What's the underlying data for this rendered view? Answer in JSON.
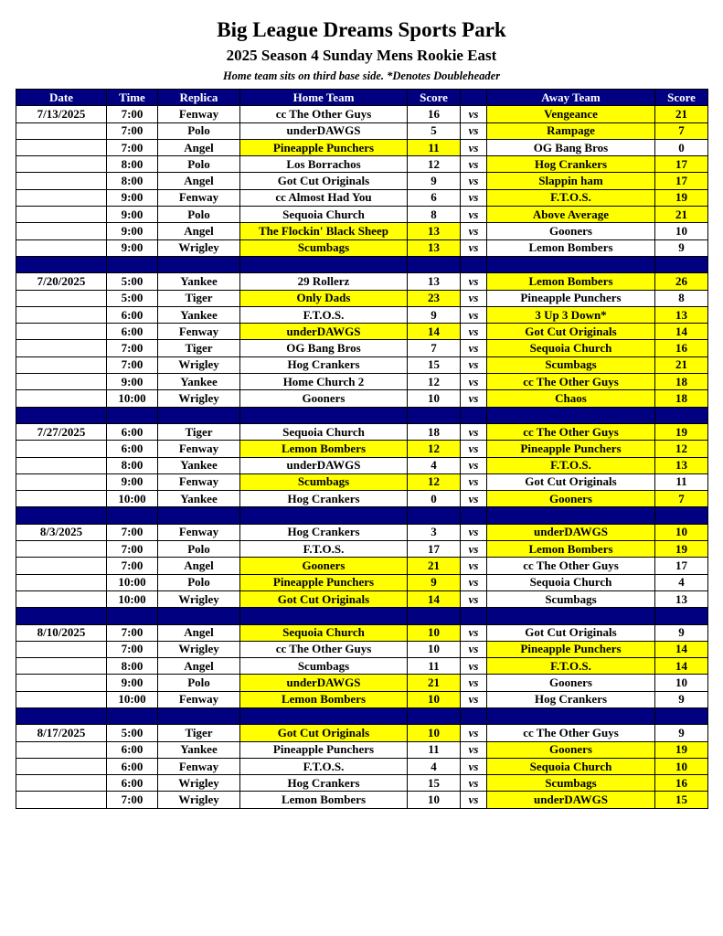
{
  "title": "Big League Dreams Sports Park",
  "subtitle": "2025 Season 4 Sunday Mens Rookie East",
  "note": "Home team sits on third base side.  *Denotes Doubleheader",
  "colors": {
    "header": "#000080",
    "winner_highlight": "#ffff00"
  },
  "headers": [
    "Date",
    "Time",
    "Replica",
    "Home Team",
    "Score",
    "",
    "Away Team",
    "Score"
  ],
  "vs": "vs",
  "weeks": [
    {
      "games": [
        [
          "7/13/2025",
          "7:00",
          "Fenway",
          "cc The Other Guys",
          "16",
          "Vengeance",
          "21",
          "a"
        ],
        [
          "",
          "7:00",
          "Polo",
          "underDAWGS",
          "5",
          "Rampage",
          "7",
          "a"
        ],
        [
          "",
          "7:00",
          "Angel",
          "Pineapple Punchers",
          "11",
          "OG Bang Bros",
          "0",
          "h"
        ],
        [
          "",
          "8:00",
          "Polo",
          "Los Borrachos",
          "12",
          "Hog Crankers",
          "17",
          "a"
        ],
        [
          "",
          "8:00",
          "Angel",
          "Got Cut Originals",
          "9",
          "Slappin ham",
          "17",
          "a"
        ],
        [
          "",
          "9:00",
          "Fenway",
          "cc Almost Had You",
          "6",
          "F.T.O.S.",
          "19",
          "a"
        ],
        [
          "",
          "9:00",
          "Polo",
          "Sequoia Church",
          "8",
          "Above Average",
          "21",
          "a"
        ],
        [
          "",
          "9:00",
          "Angel",
          "The Flockin' Black Sheep",
          "13",
          "Gooners",
          "10",
          "h"
        ],
        [
          "",
          "9:00",
          "Wrigley",
          "Scumbags",
          "13",
          "Lemon Bombers",
          "9",
          "h"
        ]
      ]
    },
    {
      "games": [
        [
          "7/20/2025",
          "5:00",
          "Yankee",
          "29 Rollerz",
          "13",
          "Lemon Bombers",
          "26",
          "a"
        ],
        [
          "",
          "5:00",
          "Tiger",
          "Only Dads",
          "23",
          "Pineapple Punchers",
          "8",
          "h"
        ],
        [
          "",
          "6:00",
          "Yankee",
          "F.T.O.S.",
          "9",
          "3 Up 3 Down*",
          "13",
          "a"
        ],
        [
          "",
          "6:00",
          "Fenway",
          "underDAWGS",
          "14",
          "Got Cut Originals",
          "14",
          "ha"
        ],
        [
          "",
          "7:00",
          "Tiger",
          "OG Bang Bros",
          "7",
          "Sequoia Church",
          "16",
          "a"
        ],
        [
          "",
          "7:00",
          "Wrigley",
          "Hog Crankers",
          "15",
          "Scumbags",
          "21",
          "a"
        ],
        [
          "",
          "9:00",
          "Yankee",
          "Home Church 2",
          "12",
          "cc The Other Guys",
          "18",
          "a"
        ],
        [
          "",
          "10:00",
          "Wrigley",
          "Gooners",
          "10",
          "Chaos",
          "18",
          "a"
        ]
      ]
    },
    {
      "games": [
        [
          "7/27/2025",
          "6:00",
          "Tiger",
          "Sequoia Church",
          "18",
          "cc The Other Guys",
          "19",
          "a"
        ],
        [
          "",
          "6:00",
          "Fenway",
          "Lemon Bombers",
          "12",
          "Pineapple Punchers",
          "12",
          "ha"
        ],
        [
          "",
          "8:00",
          "Yankee",
          "underDAWGS",
          "4",
          "F.T.O.S.",
          "13",
          "a"
        ],
        [
          "",
          "9:00",
          "Fenway",
          "Scumbags",
          "12",
          "Got Cut Originals",
          "11",
          "h"
        ],
        [
          "",
          "10:00",
          "Yankee",
          "Hog Crankers",
          "0",
          "Gooners",
          "7",
          "a"
        ]
      ]
    },
    {
      "games": [
        [
          "8/3/2025",
          "7:00",
          "Fenway",
          "Hog Crankers",
          "3",
          "underDAWGS",
          "10",
          "a"
        ],
        [
          "",
          "7:00",
          "Polo",
          "F.T.O.S.",
          "17",
          "Lemon Bombers",
          "19",
          "a"
        ],
        [
          "",
          "7:00",
          "Angel",
          "Gooners",
          "21",
          "cc The Other Guys",
          "17",
          "h"
        ],
        [
          "",
          "10:00",
          "Polo",
          "Pineapple Punchers",
          "9",
          "Sequoia Church",
          "4",
          "h"
        ],
        [
          "",
          "10:00",
          "Wrigley",
          "Got Cut Originals",
          "14",
          "Scumbags",
          "13",
          "h"
        ]
      ]
    },
    {
      "games": [
        [
          "8/10/2025",
          "7:00",
          "Angel",
          "Sequoia Church",
          "10",
          "Got Cut Originals",
          "9",
          "h"
        ],
        [
          "",
          "7:00",
          "Wrigley",
          "cc The Other Guys",
          "10",
          "Pineapple Punchers",
          "14",
          "a"
        ],
        [
          "",
          "8:00",
          "Angel",
          "Scumbags",
          "11",
          "F.T.O.S.",
          "14",
          "a"
        ],
        [
          "",
          "9:00",
          "Polo",
          "underDAWGS",
          "21",
          "Gooners",
          "10",
          "h"
        ],
        [
          "",
          "10:00",
          "Fenway",
          "Lemon Bombers",
          "10",
          "Hog Crankers",
          "9",
          "h"
        ]
      ]
    },
    {
      "games": [
        [
          "8/17/2025",
          "5:00",
          "Tiger",
          "Got Cut Originals",
          "10",
          "cc The Other Guys",
          "9",
          "h"
        ],
        [
          "",
          "6:00",
          "Yankee",
          "Pineapple Punchers",
          "11",
          "Gooners",
          "19",
          "a"
        ],
        [
          "",
          "6:00",
          "Fenway",
          "F.T.O.S.",
          "4",
          "Sequoia Church",
          "10",
          "a"
        ],
        [
          "",
          "6:00",
          "Wrigley",
          "Hog Crankers",
          "15",
          "Scumbags",
          "16",
          "a"
        ],
        [
          "",
          "7:00",
          "Wrigley",
          "Lemon Bombers",
          "10",
          "underDAWGS",
          "15",
          "a"
        ]
      ]
    }
  ]
}
